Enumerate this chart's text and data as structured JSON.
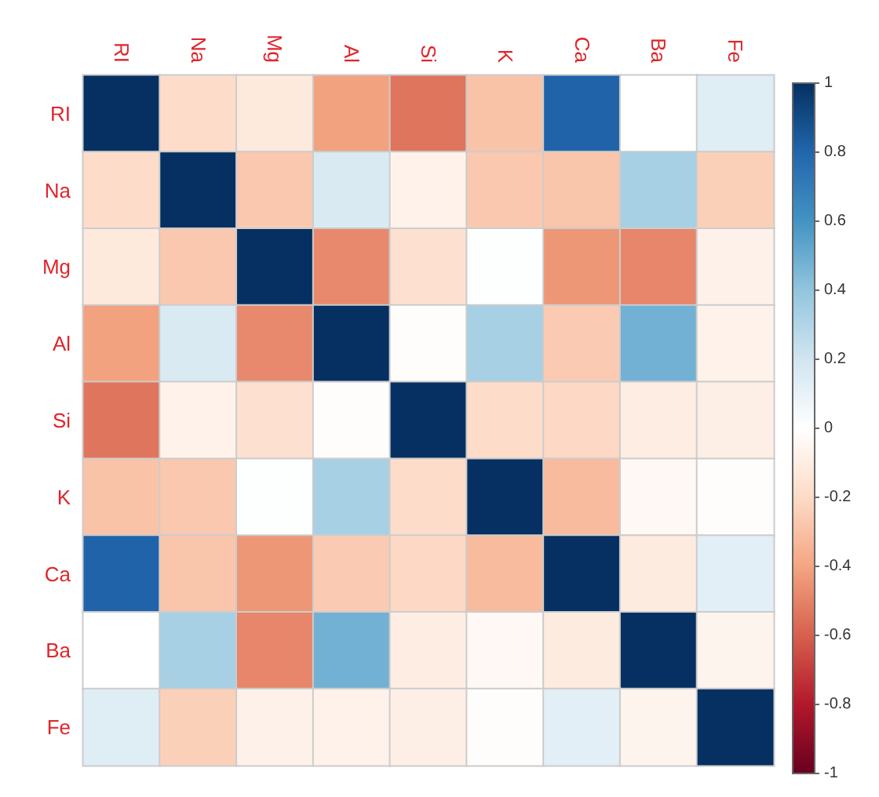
{
  "chart_data": {
    "type": "heatmap",
    "categories": [
      "RI",
      "Na",
      "Mg",
      "Al",
      "Si",
      "K",
      "Ca",
      "Ba",
      "Fe"
    ],
    "y_categories": [
      "RI",
      "Na",
      "Mg",
      "Al",
      "Si",
      "K",
      "Ca",
      "Ba",
      "Fe"
    ],
    "cells": [
      [
        1,
        -0.19,
        -0.12,
        -0.41,
        -0.54,
        -0.29,
        0.81,
        0,
        0.14
      ],
      [
        -0.19,
        1,
        -0.27,
        0.16,
        -0.07,
        -0.27,
        -0.28,
        0.33,
        -0.24
      ],
      [
        -0.12,
        -0.27,
        1,
        -0.48,
        -0.17,
        0.01,
        -0.44,
        -0.49,
        -0.08
      ],
      [
        -0.41,
        0.16,
        -0.48,
        1,
        -0.01,
        0.33,
        -0.26,
        0.48,
        -0.07
      ],
      [
        -0.54,
        -0.07,
        -0.17,
        -0.01,
        1,
        -0.19,
        -0.21,
        -0.1,
        -0.09
      ],
      [
        -0.29,
        -0.27,
        0.01,
        0.33,
        -0.19,
        1,
        -0.32,
        -0.04,
        -0.01
      ],
      [
        0.81,
        -0.28,
        -0.44,
        -0.26,
        -0.21,
        -0.32,
        1,
        -0.11,
        0.12
      ],
      [
        0,
        0.33,
        -0.49,
        0.48,
        -0.1,
        -0.04,
        -0.11,
        1,
        -0.06
      ],
      [
        0.14,
        -0.24,
        -0.08,
        -0.07,
        -0.09,
        -0.01,
        0.12,
        -0.06,
        1
      ]
    ],
    "clim": [
      -1,
      1
    ],
    "cticks": [
      -1,
      -0.8,
      -0.6,
      -0.4,
      -0.2,
      0,
      0.2,
      0.4,
      0.6,
      0.8,
      1
    ]
  }
}
